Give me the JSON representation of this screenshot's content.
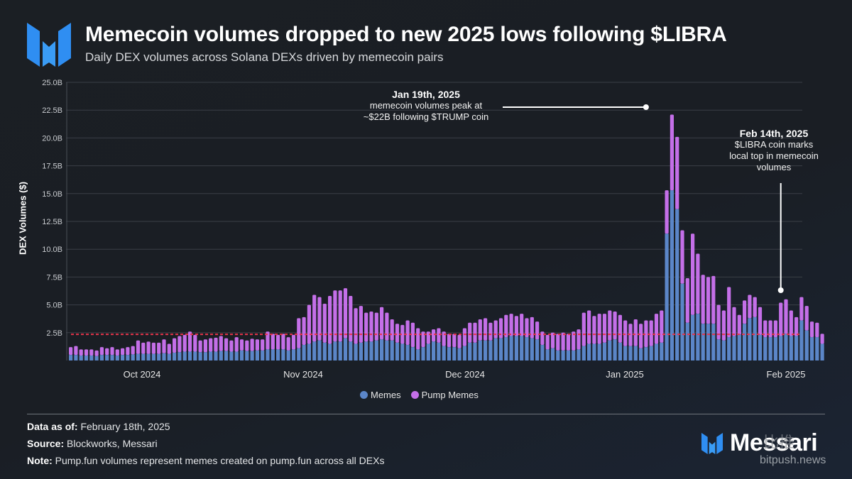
{
  "header": {
    "title": "Memecoin volumes dropped to new 2025 lows following $LIBRA",
    "subtitle": "Daily DEX volumes across Solana DEXs driven by memecoin pairs"
  },
  "chart_data": {
    "type": "bar",
    "stacked": true,
    "title": "Memecoin volumes dropped to new 2025 lows following $LIBRA",
    "subtitle": "Daily DEX volumes across Solana DEXs driven by memecoin pairs",
    "xlabel": "",
    "ylabel": "DEX Volumes ($)",
    "ylim": [
      0,
      25
    ],
    "y_unit": "B",
    "yticks": [
      "2.5B",
      "5.0B",
      "7.5B",
      "10.0B",
      "12.5B",
      "15.0B",
      "17.5B",
      "20.0B",
      "22.5B",
      "25.0B"
    ],
    "ytick_values": [
      2.5,
      5,
      7.5,
      10,
      12.5,
      15,
      17.5,
      20,
      22.5,
      25
    ],
    "xticks": [
      {
        "label": "Oct 2024",
        "index": 14
      },
      {
        "label": "Nov 2024",
        "index": 45
      },
      {
        "label": "Dec 2024",
        "index": 76
      },
      {
        "label": "Jan 2025",
        "index": 107
      },
      {
        "label": "Feb 2025",
        "index": 138
      }
    ],
    "grid": true,
    "legend_position": "bottom-center",
    "colors": {
      "memes": "#5b86c8",
      "pump_memes": "#c46fe8",
      "average_line": "#e8334a",
      "grid": "#3a3f46"
    },
    "reference_line": {
      "label": "average",
      "value": 2.35,
      "style": "dashed"
    },
    "series": [
      {
        "name": "Memes",
        "values": [
          0.5,
          0.5,
          0.45,
          0.45,
          0.45,
          0.4,
          0.5,
          0.5,
          0.5,
          0.45,
          0.5,
          0.5,
          0.55,
          0.6,
          0.6,
          0.6,
          0.6,
          0.6,
          0.65,
          0.6,
          0.7,
          0.75,
          0.8,
          0.8,
          0.8,
          0.75,
          0.75,
          0.8,
          0.8,
          0.85,
          0.85,
          0.8,
          0.8,
          0.9,
          0.85,
          0.85,
          0.9,
          0.9,
          1.0,
          1.0,
          1.0,
          1.0,
          0.9,
          1.0,
          1.1,
          1.4,
          1.5,
          1.7,
          1.8,
          1.6,
          1.5,
          1.7,
          1.7,
          2.0,
          1.7,
          1.5,
          1.6,
          1.7,
          1.7,
          1.8,
          1.9,
          1.8,
          1.8,
          1.6,
          1.5,
          1.4,
          1.2,
          1.0,
          1.2,
          1.5,
          1.7,
          1.6,
          1.3,
          1.2,
          1.2,
          1.1,
          1.3,
          1.6,
          1.6,
          1.8,
          1.8,
          1.8,
          2.0,
          2.0,
          2.1,
          2.2,
          2.2,
          2.2,
          2.1,
          2.0,
          1.9,
          1.4,
          1.0,
          1.1,
          0.9,
          0.9,
          0.9,
          0.9,
          1.0,
          1.3,
          1.5,
          1.5,
          1.5,
          1.6,
          1.8,
          1.9,
          1.6,
          1.3,
          1.3,
          1.3,
          1.1,
          1.2,
          1.3,
          1.5,
          1.6,
          11.4,
          15.3,
          13.6,
          6.9,
          3.4,
          4.1,
          4.2,
          3.3,
          3.3,
          3.3,
          1.9,
          1.8,
          2.1,
          2.2,
          2.3,
          3.3,
          3.8,
          3.9,
          2.3,
          2.1,
          2.1,
          2.1,
          2.2,
          2.4,
          2.2,
          2.2,
          3.6,
          2.7,
          2.1,
          2.1,
          1.5
        ]
      },
      {
        "name": "Pump Memes",
        "values": [
          0.7,
          0.8,
          0.55,
          0.55,
          0.55,
          0.5,
          0.7,
          0.6,
          0.7,
          0.55,
          0.6,
          0.7,
          0.75,
          1.2,
          1.0,
          1.1,
          1.0,
          1.0,
          1.25,
          0.9,
          1.3,
          1.45,
          1.5,
          1.8,
          1.5,
          1.05,
          1.15,
          1.2,
          1.25,
          1.35,
          1.15,
          1.0,
          1.3,
          1.0,
          0.95,
          1.1,
          1.0,
          1.0,
          1.6,
          1.4,
          1.3,
          1.4,
          1.2,
          1.3,
          2.7,
          2.5,
          3.5,
          4.2,
          3.9,
          3.5,
          4.3,
          4.6,
          4.6,
          4.5,
          4.1,
          3.2,
          3.3,
          2.6,
          2.7,
          2.5,
          2.9,
          2.5,
          1.9,
          1.7,
          1.7,
          2.2,
          2.2,
          1.9,
          1.4,
          1.1,
          1.1,
          1.3,
          1.3,
          1.2,
          1.2,
          1.2,
          1.6,
          1.8,
          1.8,
          1.9,
          2.0,
          1.6,
          1.6,
          1.8,
          2.0,
          2.0,
          1.8,
          2.0,
          1.7,
          1.9,
          1.6,
          1.2,
          1.3,
          1.4,
          1.5,
          1.6,
          1.5,
          1.7,
          1.8,
          3.0,
          3.0,
          2.5,
          2.7,
          2.6,
          2.7,
          2.5,
          2.5,
          2.3,
          2.0,
          2.4,
          2.2,
          2.4,
          2.3,
          2.7,
          2.9,
          3.9,
          6.8,
          6.5,
          4.8,
          4.0,
          7.3,
          5.4,
          4.4,
          4.2,
          4.3,
          3.1,
          2.7,
          4.5,
          2.6,
          1.8,
          2.1,
          2.1,
          1.8,
          2.5,
          1.5,
          1.5,
          1.5,
          3.0,
          3.1,
          2.3,
          1.7,
          2.1,
          2.2,
          1.4,
          1.3,
          0.9
        ]
      }
    ],
    "annotations": [
      {
        "title": "Jan 19th, 2025",
        "text": "memecoin volumes peak at ~$22B following $TRUMP coin",
        "index": 111
      },
      {
        "title": "Feb 14th, 2025",
        "text": "$LIBRA coin marks local top in memecoin volumes",
        "index": 137
      }
    ]
  },
  "annotations": {
    "peak": {
      "title": "Jan 19th, 2025",
      "line1": "memecoin volumes peak at",
      "line2": "~$22B following $TRUMP coin"
    },
    "libra": {
      "title": "Feb 14th, 2025",
      "line1": "$LIBRA coin marks",
      "line2": "local top in memecoin",
      "line3": "volumes"
    }
  },
  "legend": {
    "memes": "Memes",
    "pump_memes": "Pump Memes"
  },
  "footer": {
    "data_as_of_label": "Data as of:",
    "data_as_of": "February 18th, 2025",
    "source_label": "Source:",
    "source": "Blockworks, Messari",
    "note_label": "Note:",
    "note": "Pump.fun volumes represent memes created on pump.fun across all DEXs"
  },
  "brand": {
    "name": "Messari",
    "watermark": "bitpush.news",
    "watermark_cn": "比推"
  }
}
